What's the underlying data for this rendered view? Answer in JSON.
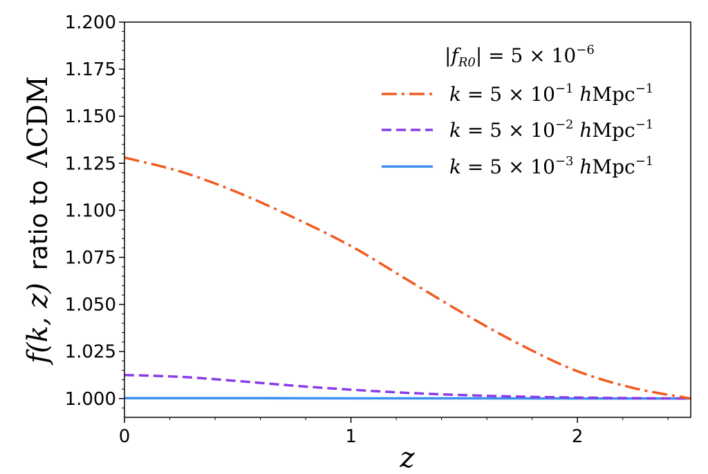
{
  "chart_data": {
    "type": "line",
    "title": "",
    "xlabel": "z",
    "ylabel": {
      "math": "f(k, z)",
      "text": "ratio to",
      "suffix": "ΛCDM"
    },
    "xlim": [
      0,
      2.5
    ],
    "ylim": [
      0.99,
      1.2
    ],
    "x_ticks": [
      0,
      1,
      2
    ],
    "x_tick_labels": [
      "0",
      "1",
      "2"
    ],
    "y_ticks": [
      1.0,
      1.025,
      1.05,
      1.075,
      1.1,
      1.125,
      1.15,
      1.175,
      1.2
    ],
    "y_tick_labels": [
      "1.000",
      "1.025",
      "1.050",
      "1.075",
      "1.100",
      "1.125",
      "1.150",
      "1.175",
      "1.200"
    ],
    "grid": false,
    "legend_position": "top-right",
    "legend_title": "|f_R0| = 5 × 10^-6",
    "series": [
      {
        "name": "k = 5 × 10^-1 hMpc^-1",
        "color": "#f05a1e",
        "dash": "dashdot",
        "x": [
          0,
          0.25,
          0.5,
          0.75,
          1.0,
          1.25,
          1.5,
          1.75,
          2.0,
          2.25,
          2.5
        ],
        "y": [
          1.128,
          1.1205,
          1.1095,
          1.096,
          1.081,
          1.063,
          1.045,
          1.0285,
          1.0145,
          1.0055,
          1.0
        ]
      },
      {
        "name": "k = 5 × 10^-2 hMpc^-1",
        "color": "#8a3be8",
        "dash": "dashed",
        "x": [
          0,
          0.25,
          0.5,
          0.75,
          1.0,
          1.25,
          1.5,
          1.75,
          2.0,
          2.25,
          2.5
        ],
        "y": [
          1.0125,
          1.0115,
          1.0093,
          1.0068,
          1.0047,
          1.003,
          1.0018,
          1.001,
          1.0005,
          1.0002,
          1.0
        ]
      },
      {
        "name": "k = 5 × 10^-3 hMpc^-1",
        "color": "#3b8ff0",
        "dash": "solid",
        "x": [
          0,
          0.5,
          1.0,
          1.5,
          2.0,
          2.5
        ],
        "y": [
          1.0002,
          1.0002,
          1.0001,
          1.0001,
          1.0,
          1.0
        ]
      }
    ]
  }
}
